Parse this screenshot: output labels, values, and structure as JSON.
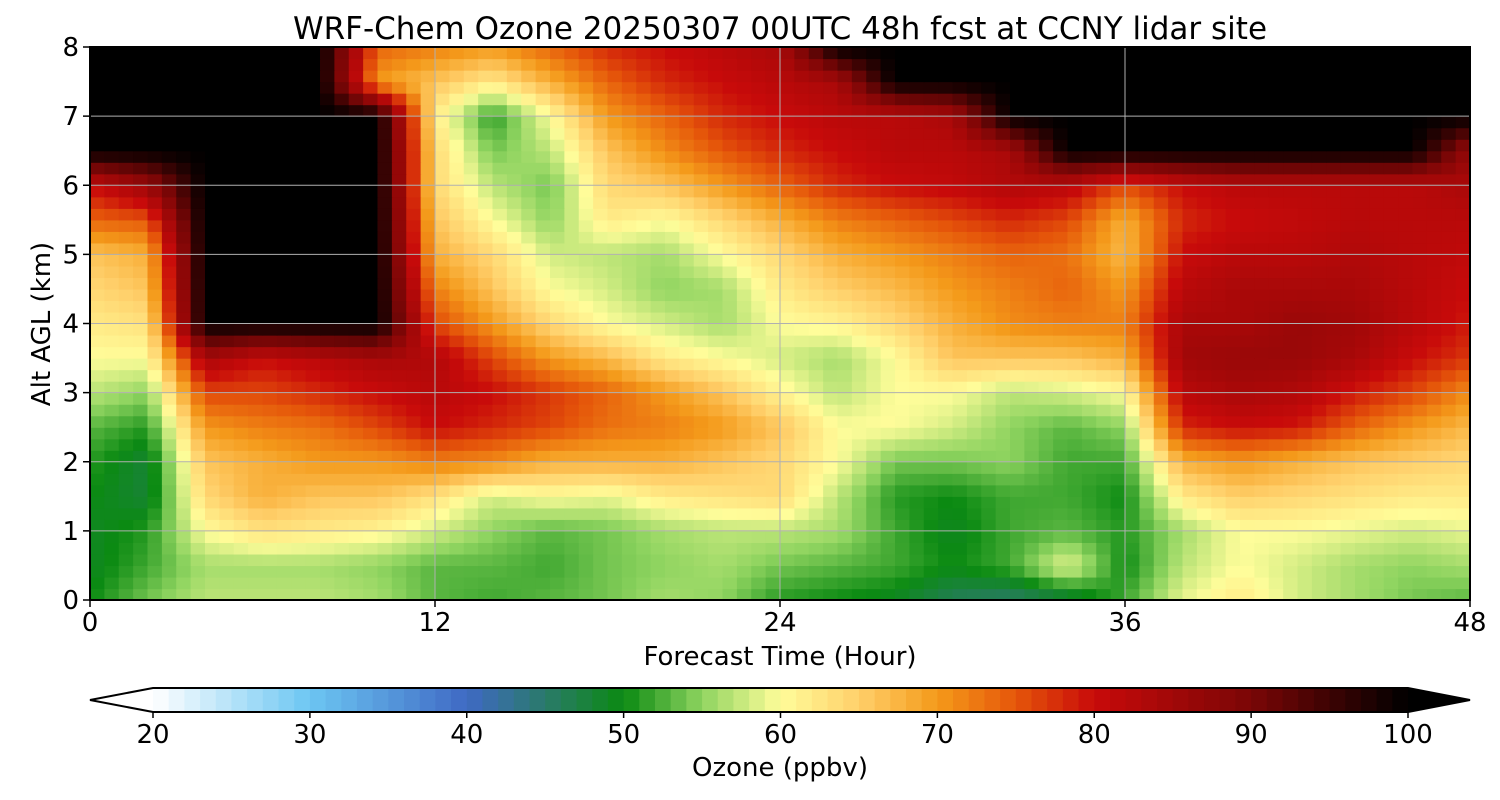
{
  "chart_data": {
    "type": "heatmap",
    "title": "WRF-Chem Ozone  20250307 00UTC 48h fcst at CCNY lidar site",
    "xlabel": "Forecast Time (Hour)",
    "ylabel": "Alt AGL (km)",
    "xlim": [
      0,
      48
    ],
    "ylim": [
      0,
      8
    ],
    "xticks": [
      "0",
      "12",
      "24",
      "36",
      "48"
    ],
    "yticks": [
      "0",
      "1",
      "2",
      "3",
      "4",
      "5",
      "6",
      "7",
      "8"
    ],
    "grid": true,
    "x": [
      0,
      2,
      4,
      6,
      8,
      10,
      12,
      14,
      16,
      18,
      20,
      22,
      24,
      26,
      28,
      30,
      32,
      34,
      36,
      38,
      40,
      42,
      44,
      46,
      48
    ],
    "y": [
      0,
      0.5,
      1,
      1.5,
      2,
      2.5,
      3,
      3.5,
      4,
      4.5,
      5,
      5.5,
      6,
      6.5,
      7,
      7.5,
      8
    ],
    "z": [
      [
        50,
        54,
        57,
        57,
        57,
        56,
        53,
        52,
        53,
        54,
        56,
        55,
        51,
        50,
        49,
        46,
        45,
        47,
        52,
        59,
        62,
        58,
        56,
        54,
        53
      ],
      [
        49,
        52,
        56,
        56,
        56,
        55,
        53,
        53,
        52,
        54,
        55,
        56,
        54,
        53,
        52,
        50,
        52,
        59,
        50,
        57,
        60,
        58,
        56,
        55,
        56
      ],
      [
        49,
        51,
        60,
        63,
        62,
        61,
        58,
        55,
        53,
        54,
        56,
        57,
        57,
        56,
        52,
        49,
        52,
        53,
        51,
        56,
        60,
        60,
        59,
        58,
        59
      ],
      [
        50,
        48,
        64,
        68,
        66,
        66,
        63,
        58,
        60,
        59,
        62,
        63,
        64,
        57,
        51,
        50,
        52,
        52,
        50,
        62,
        65,
        64,
        63,
        62,
        62
      ],
      [
        51,
        48,
        66,
        68,
        70,
        70,
        72,
        71,
        68,
        68,
        68,
        66,
        64,
        60,
        54,
        54,
        55,
        52,
        52,
        68,
        70,
        68,
        66,
        65,
        64
      ],
      [
        53,
        51,
        70,
        72,
        73,
        76,
        80,
        78,
        76,
        73,
        72,
        70,
        66,
        60,
        60,
        58,
        55,
        53,
        55,
        78,
        80,
        79,
        74,
        70,
        67
      ],
      [
        57,
        55,
        76,
        76,
        78,
        80,
        82,
        80,
        77,
        74,
        70,
        66,
        61,
        57,
        60,
        60,
        57,
        58,
        60,
        82,
        84,
        83,
        79,
        76,
        71
      ],
      [
        60,
        60,
        84,
        80,
        82,
        84,
        83,
        76,
        70,
        67,
        62,
        60,
        58,
        56,
        60,
        66,
        66,
        66,
        68,
        85,
        86,
        86,
        84,
        80,
        77
      ],
      [
        62,
        63,
        100,
        100,
        100,
        100,
        76,
        70,
        64,
        60,
        58,
        56,
        60,
        61,
        64,
        68,
        71,
        72,
        72,
        84,
        84,
        86,
        85,
        82,
        79
      ],
      [
        64,
        66,
        100,
        100,
        100,
        100,
        72,
        66,
        60,
        58,
        55,
        56,
        62,
        65,
        67,
        70,
        72,
        74,
        70,
        82,
        84,
        84,
        84,
        82,
        80
      ],
      [
        66,
        68,
        100,
        100,
        100,
        100,
        68,
        64,
        58,
        57,
        56,
        60,
        64,
        68,
        70,
        72,
        74,
        73,
        67,
        80,
        82,
        82,
        83,
        82,
        81
      ],
      [
        74,
        75,
        100,
        100,
        100,
        100,
        66,
        60,
        55,
        62,
        60,
        64,
        68,
        72,
        74,
        76,
        78,
        76,
        68,
        78,
        80,
        81,
        82,
        82,
        82
      ],
      [
        80,
        86,
        100,
        100,
        100,
        100,
        64,
        57,
        54,
        64,
        66,
        70,
        74,
        78,
        80,
        81,
        83,
        82,
        76,
        80,
        82,
        82,
        82,
        82,
        84
      ],
      [
        100,
        100,
        100,
        100,
        100,
        100,
        64,
        54,
        57,
        66,
        71,
        75,
        78,
        80,
        82,
        82,
        84,
        100,
        100,
        100,
        100,
        100,
        100,
        100,
        86
      ],
      [
        100,
        100,
        100,
        100,
        100,
        100,
        62,
        51,
        60,
        70,
        74,
        78,
        80,
        82,
        82,
        84,
        100,
        100,
        100,
        100,
        100,
        100,
        100,
        100,
        100
      ],
      [
        100,
        100,
        100,
        100,
        100,
        70,
        66,
        62,
        68,
        74,
        78,
        80,
        82,
        84,
        100,
        100,
        100,
        100,
        100,
        100,
        100,
        100,
        100,
        100,
        100
      ],
      [
        100,
        100,
        100,
        100,
        100,
        74,
        72,
        70,
        74,
        78,
        80,
        82,
        84,
        100,
        100,
        100,
        100,
        100,
        100,
        100,
        100,
        100,
        100,
        100,
        100
      ]
    ],
    "colorbar": {
      "label": "Ozone  (ppbv)",
      "range": [
        20,
        100
      ],
      "ticks": [
        "20",
        "30",
        "40",
        "50",
        "60",
        "70",
        "80",
        "90",
        "100"
      ],
      "extend": "both",
      "colors": [
        {
          "value": 20,
          "color": "#ffffff"
        },
        {
          "value": 30,
          "color": "#6cc6f2"
        },
        {
          "value": 40,
          "color": "#3f69c4"
        },
        {
          "value": 45,
          "color": "#2a7a6a"
        },
        {
          "value": 50,
          "color": "#0b8a12"
        },
        {
          "value": 55,
          "color": "#8fd460"
        },
        {
          "value": 60,
          "color": "#fffd9a"
        },
        {
          "value": 65,
          "color": "#ffcf6a"
        },
        {
          "value": 70,
          "color": "#f49a1a"
        },
        {
          "value": 75,
          "color": "#e5560a"
        },
        {
          "value": 80,
          "color": "#c80a0a"
        },
        {
          "value": 90,
          "color": "#7a0606"
        },
        {
          "value": 100,
          "color": "#000000"
        }
      ]
    }
  }
}
